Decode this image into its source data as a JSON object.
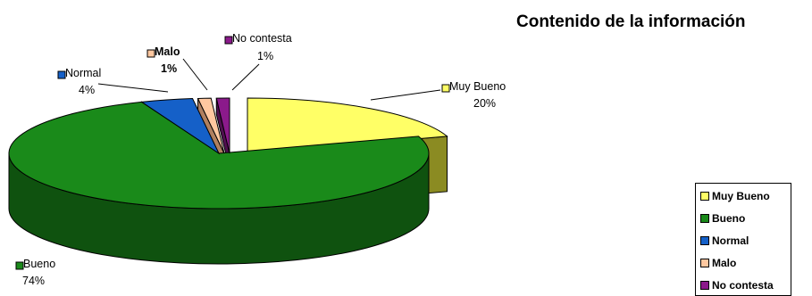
{
  "chart_data": {
    "type": "pie",
    "title": "Contenido de la información",
    "slices": [
      {
        "name": "Muy Bueno",
        "value": 20,
        "label": "20%",
        "color": "#ffff66",
        "side": "#8b8b22",
        "bold": false
      },
      {
        "name": "Bueno",
        "value": 74,
        "label": "74%",
        "color": "#1a8a1a",
        "side": "#0f520f",
        "bold": false
      },
      {
        "name": "Normal",
        "value": 4,
        "label": "4%",
        "color": "#1560c8",
        "side": "#0c3a78",
        "bold": false
      },
      {
        "name": "Malo",
        "value": 1,
        "label": "1%",
        "color": "#ffc8a0",
        "side": "#b08060",
        "bold": true
      },
      {
        "name": "No contesta",
        "value": 1,
        "label": "1%",
        "color": "#8b1a8b",
        "side": "#4f0f4f",
        "bold": false
      }
    ],
    "legend": {
      "position": "bottom-right",
      "items": [
        "Muy Bueno",
        "Bueno",
        "Normal",
        "Malo",
        "No contesta"
      ]
    }
  }
}
